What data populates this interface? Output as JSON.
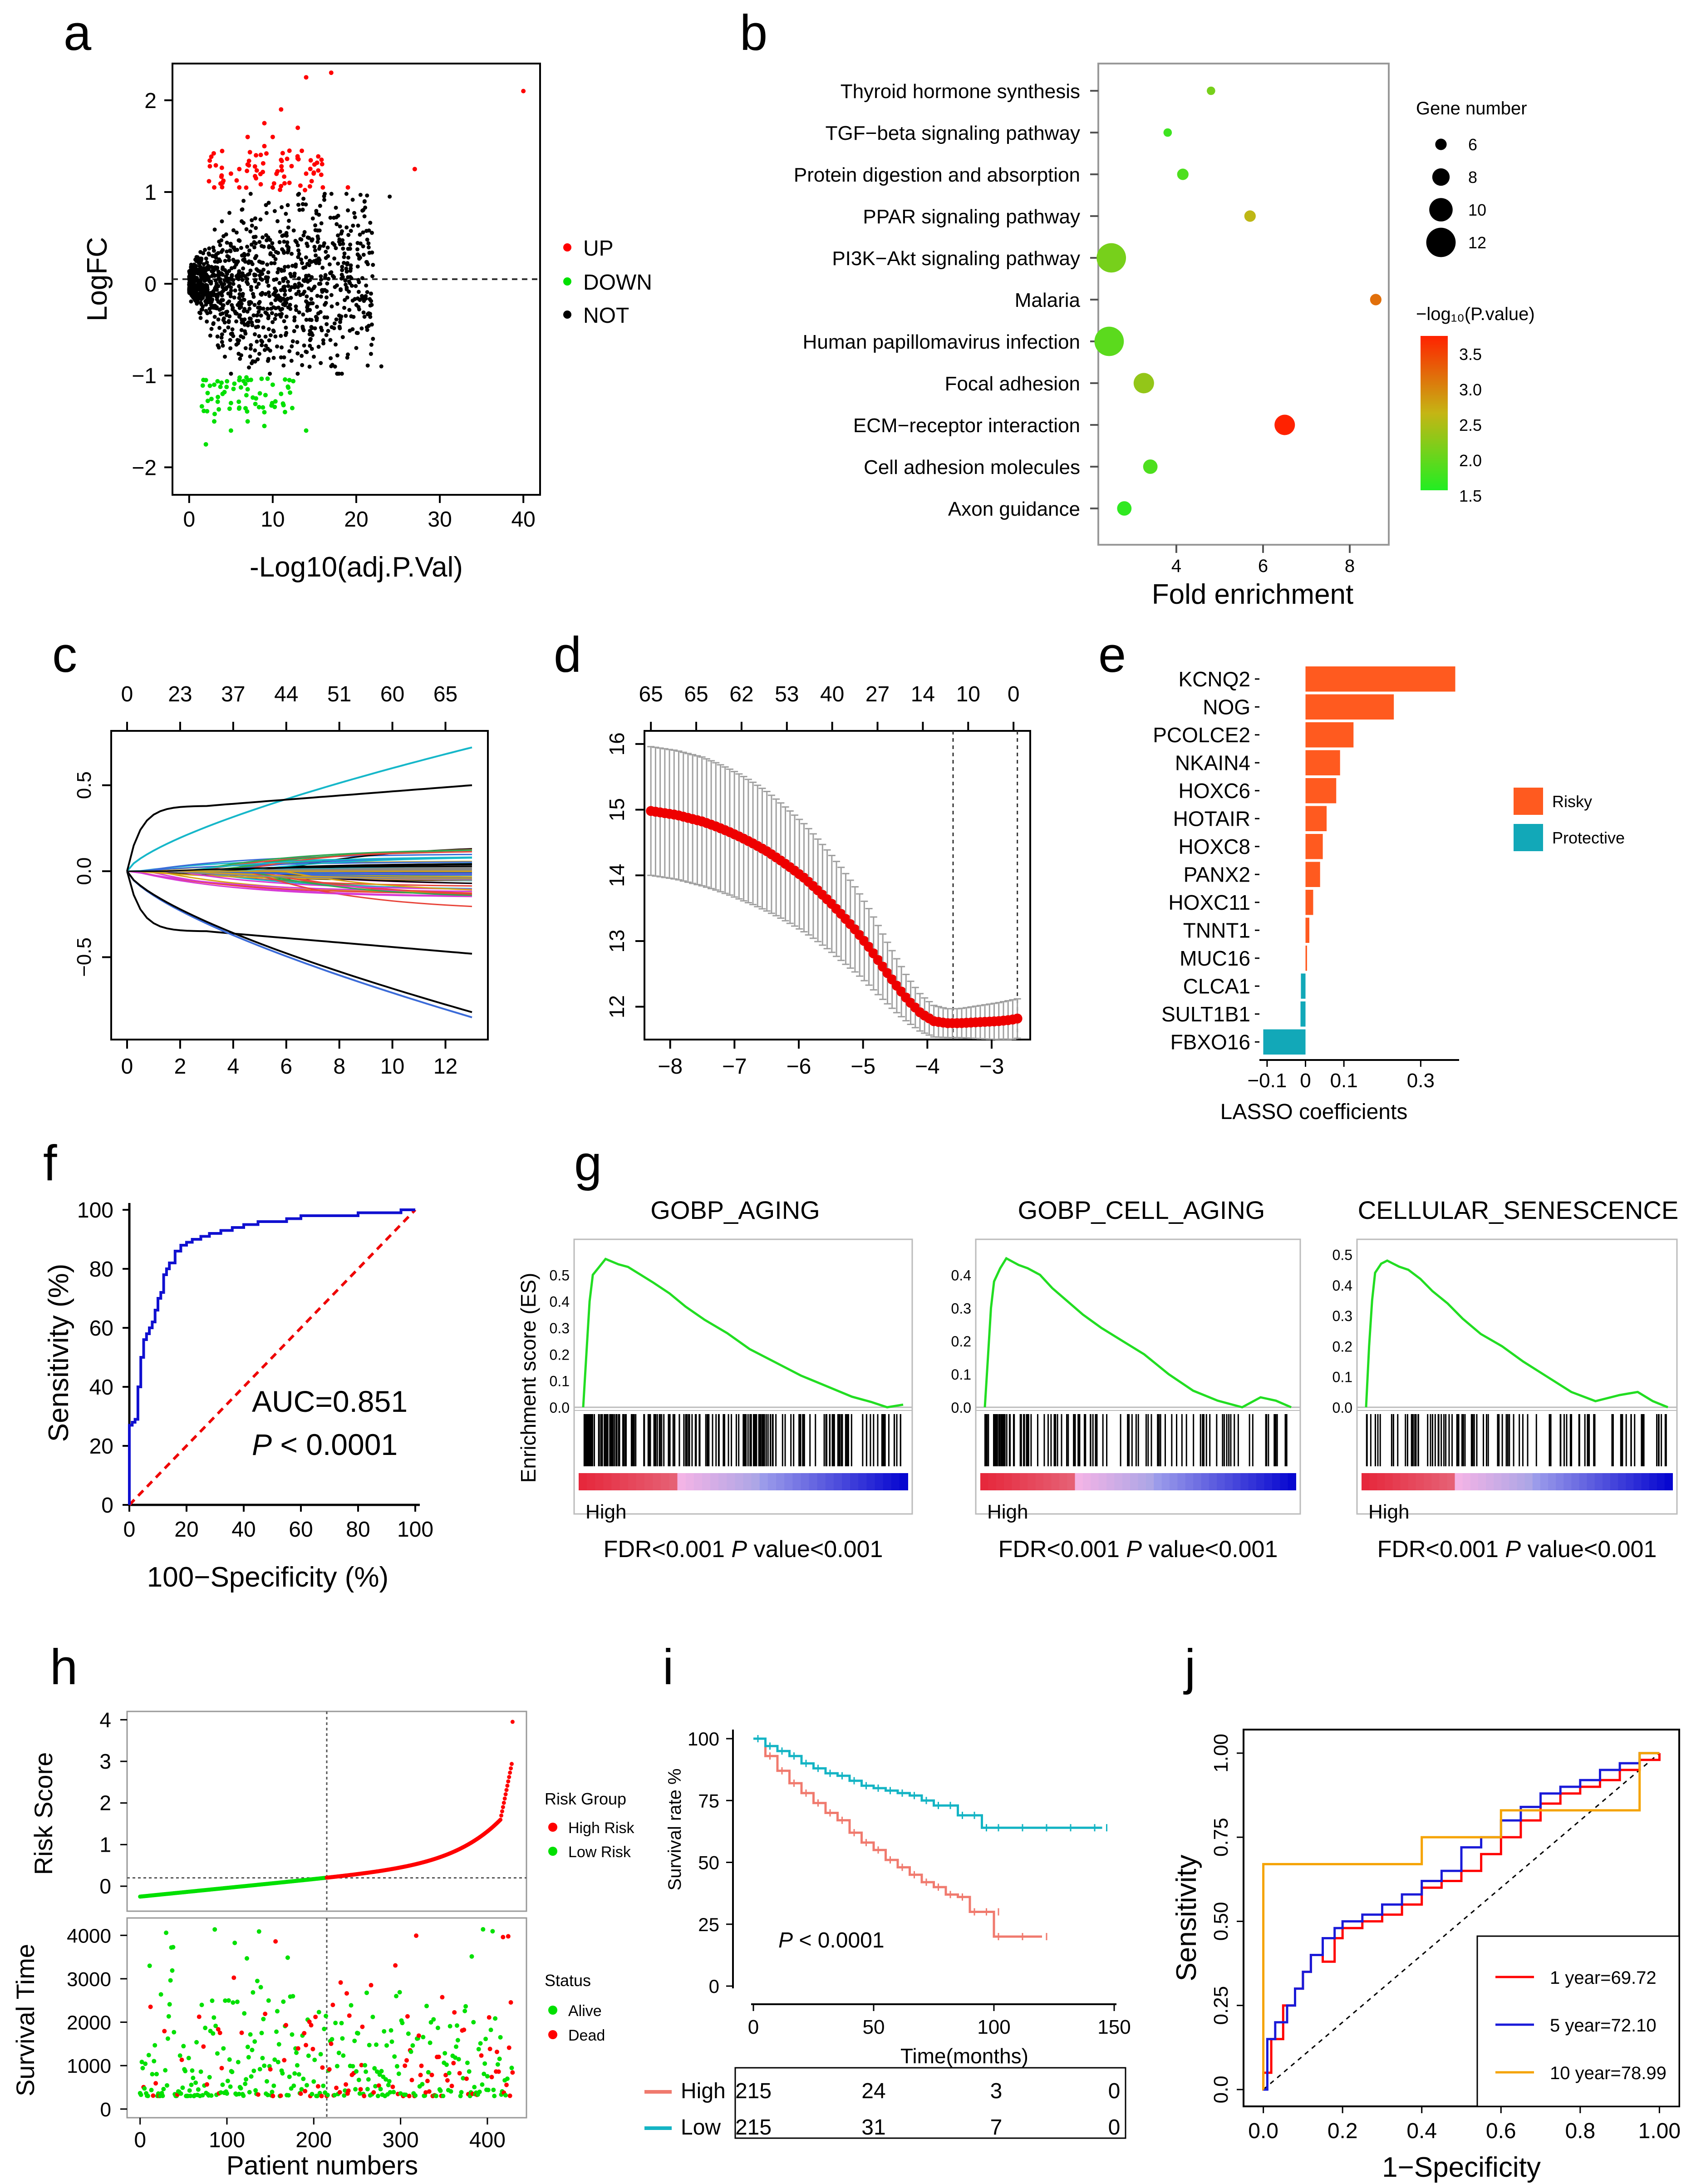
{
  "figure": {
    "panel_labels": [
      "a",
      "b",
      "c",
      "d",
      "e",
      "f",
      "g",
      "h",
      "i",
      "j"
    ]
  },
  "colors": {
    "red": "#ff0000",
    "green": "#00e000",
    "black": "#000000",
    "blue": "#1010d0",
    "orange": "#ff5a1f",
    "teal": "#12a8b8",
    "salmon": "#f07a6e",
    "cyan": "#14b4c4",
    "gold": "#f5a300",
    "grey": "#9a9a9a"
  },
  "chart_data": [
    {
      "id": "a",
      "type": "scatter",
      "title": "",
      "xlabel": "-Log10(adj.P.Val)",
      "ylabel": "LogFC",
      "xlim": [
        -2,
        42
      ],
      "ylim": [
        -2.3,
        2.4
      ],
      "xticks": [
        0,
        10,
        20,
        30,
        40
      ],
      "yticks": [
        -2,
        -1,
        0,
        1,
        2
      ],
      "hline": 0,
      "legend": {
        "position": "right",
        "entries": [
          "UP",
          "DOWN",
          "NOT"
        ]
      },
      "series": [
        {
          "name": "UP",
          "points": [
            [
              3,
              1.05
            ],
            [
              4,
              1.1
            ],
            [
              5,
              1.2
            ],
            [
              6,
              1.25
            ],
            [
              7,
              1.3
            ],
            [
              8,
              1.4
            ],
            [
              9,
              1.5
            ],
            [
              10,
              1.6
            ],
            [
              11,
              1.35
            ],
            [
              12,
              1.1
            ],
            [
              13,
              1.7
            ],
            [
              14,
              1.2
            ],
            [
              15,
              1.3
            ],
            [
              16,
              1.05
            ],
            [
              17,
              2.3
            ],
            [
              14,
              2.25
            ],
            [
              27,
              1.25
            ],
            [
              40,
              2.1
            ],
            [
              6,
              1.05
            ],
            [
              8,
              1.15
            ],
            [
              10,
              1.05
            ],
            [
              12,
              1.45
            ],
            [
              7,
              1.6
            ],
            [
              9,
              1.75
            ],
            [
              11,
              1.9
            ],
            [
              19,
              1.05
            ]
          ]
        },
        {
          "name": "DOWN",
          "points": [
            [
              2,
              -1.05
            ],
            [
              3,
              -1.1
            ],
            [
              4,
              -1.2
            ],
            [
              5,
              -1.3
            ],
            [
              6,
              -1.05
            ],
            [
              7,
              -1.15
            ],
            [
              8,
              -1.25
            ],
            [
              9,
              -1.4
            ],
            [
              10,
              -1.1
            ],
            [
              11,
              -1.2
            ],
            [
              3,
              -1.5
            ],
            [
              5,
              -1.6
            ],
            [
              7,
              -1.5
            ],
            [
              9,
              -1.55
            ],
            [
              14,
              -1.6
            ],
            [
              2,
              -1.75
            ],
            [
              12,
              -1.05
            ],
            [
              6,
              -1.35
            ]
          ]
        },
        {
          "name": "NOT",
          "cloud": "dense band between -1 and 1 spanning 0 to 25, with outliers"
        }
      ]
    },
    {
      "id": "b",
      "type": "scatter",
      "title": "",
      "xlabel": "Fold enrichment",
      "xlim": [
        2.2,
        8.9
      ],
      "xticks": [
        4,
        6,
        8
      ],
      "categories": [
        "Thyroid hormone synthesis",
        "TGF−beta signaling pathway",
        "Protein digestion and absorption",
        "PPAR signaling pathway",
        "PI3K−Akt signaling pathway",
        "Malaria",
        "Human papillomavirus infection",
        "Focal adhesion",
        "ECM−receptor interaction",
        "Cell adhesion molecules",
        "Axon guidance"
      ],
      "fold_enrichment": [
        4.8,
        3.8,
        4.15,
        5.7,
        2.5,
        8.6,
        2.45,
        3.25,
        6.5,
        3.4,
        2.8
      ],
      "gene_number": [
        5,
        5,
        6,
        6,
        12,
        6,
        12,
        9,
        9,
        7,
        7
      ],
      "neg_log10_p": [
        2.0,
        1.6,
        1.7,
        2.5,
        2.0,
        3.1,
        1.8,
        2.2,
        3.7,
        1.7,
        1.5
      ],
      "size_legend": {
        "title": "Gene number",
        "values": [
          "6",
          "8",
          "10",
          "12"
        ]
      },
      "color_legend": {
        "title": "−log₁₀(P.value)",
        "ticks": [
          "3.5",
          "3.0",
          "2.5",
          "2.0",
          "1.5"
        ]
      }
    },
    {
      "id": "c",
      "type": "line",
      "title": "",
      "xlim": [
        0,
        13
      ],
      "ylim": [
        -0.9,
        0.75
      ],
      "xticks": [
        0,
        2,
        4,
        6,
        8,
        10,
        12
      ],
      "yticks": [
        "0.5",
        "0.0",
        "−0.5"
      ],
      "top_axis": [
        "0",
        "23",
        "37",
        "44",
        "51",
        "60",
        "65"
      ],
      "series_count": 65
    },
    {
      "id": "d",
      "type": "line",
      "title": "",
      "xlim": [
        -8.4,
        -2.4
      ],
      "ylim": [
        11.5,
        16.2
      ],
      "xticks": [
        -8,
        -7,
        -6,
        -5,
        -4,
        -3
      ],
      "yticks": [
        12,
        13,
        14,
        15,
        16
      ],
      "top_axis": [
        "65",
        "65",
        "62",
        "53",
        "40",
        "27",
        "14",
        "10",
        "0"
      ],
      "vlines": [
        -3.6,
        -2.6
      ],
      "x": [
        -8.3,
        -8.1,
        -7.9,
        -7.7,
        -7.5,
        -7.3,
        -7.1,
        -6.9,
        -6.7,
        -6.5,
        -6.3,
        -6.1,
        -5.9,
        -5.7,
        -5.5,
        -5.3,
        -5.1,
        -4.9,
        -4.7,
        -4.5,
        -4.3,
        -4.1,
        -3.9,
        -3.7,
        -3.5,
        -3.3,
        -3.1,
        -2.9,
        -2.7,
        -2.6
      ],
      "y": [
        14.98,
        14.95,
        14.92,
        14.87,
        14.82,
        14.75,
        14.67,
        14.58,
        14.48,
        14.37,
        14.24,
        14.1,
        13.95,
        13.77,
        13.58,
        13.37,
        13.15,
        12.9,
        12.62,
        12.35,
        12.1,
        11.9,
        11.78,
        11.75,
        11.75,
        11.76,
        11.77,
        11.78,
        11.8,
        11.82
      ],
      "err": [
        0.98,
        0.98,
        0.98,
        0.98,
        0.98,
        0.97,
        0.96,
        0.95,
        0.93,
        0.91,
        0.88,
        0.85,
        0.82,
        0.78,
        0.74,
        0.7,
        0.64,
        0.58,
        0.5,
        0.42,
        0.34,
        0.28,
        0.24,
        0.22,
        0.22,
        0.24,
        0.26,
        0.28,
        0.3,
        0.3
      ]
    },
    {
      "id": "e",
      "type": "bar",
      "title": "",
      "xlabel": "LASSO coefficients",
      "xlim": [
        -0.12,
        0.4
      ],
      "xticks": [
        "−0.1",
        "0",
        "0.1",
        "0.3"
      ],
      "xtick_values": [
        -0.1,
        0,
        0.1,
        0.3
      ],
      "categories": [
        "KCNQ2",
        "NOG",
        "PCOLCE2",
        "NKAIN4",
        "HOXC6",
        "HOTAIR",
        "HOXC8",
        "PANX2",
        "HOXC11",
        "TNNT1",
        "MUC16",
        "CLCA1",
        "SULT1B1",
        "FBXO16"
      ],
      "values": [
        0.39,
        0.23,
        0.125,
        0.09,
        0.08,
        0.055,
        0.045,
        0.038,
        0.02,
        0.01,
        0.004,
        -0.012,
        -0.013,
        -0.11
      ],
      "legend": [
        "Risky",
        "Protective"
      ]
    },
    {
      "id": "f",
      "type": "line",
      "title": "",
      "xlabel": "100−Specificity  (%)",
      "ylabel": "Sensitivity (%)",
      "xlim": [
        0,
        100
      ],
      "ylim": [
        0,
        100
      ],
      "xticks": [
        0,
        20,
        40,
        60,
        80,
        100
      ],
      "yticks": [
        0,
        20,
        40,
        60,
        80,
        100
      ],
      "x": [
        0,
        0,
        1,
        2,
        3,
        3,
        4,
        5,
        6,
        7,
        8,
        9,
        10,
        11,
        12,
        13,
        14,
        16,
        18,
        20,
        22,
        25,
        28,
        32,
        36,
        40,
        45,
        50,
        55,
        60,
        70,
        80,
        90,
        95,
        100
      ],
      "y": [
        0,
        27,
        28,
        29,
        30,
        40,
        50,
        56,
        58,
        60,
        62,
        66,
        70,
        72,
        78,
        80,
        82,
        86,
        88,
        89,
        90,
        91,
        92,
        93,
        94,
        95,
        96,
        96,
        97,
        98,
        98,
        99,
        99,
        100,
        100
      ],
      "auc_label": "AUC=0.851",
      "p_label": "P < 0.0001"
    },
    {
      "id": "g",
      "type": "line",
      "titles": [
        "GOBP_AGING",
        "GOBP_CELL_AGING",
        "CELLULAR_SENESCENCE"
      ],
      "ylabel": "Enrichment score (ES)",
      "xlabel_left": "High",
      "footers": [
        [
          "FDR<0.001",
          "P",
          " value<0.001"
        ],
        [
          "FDR<0.001",
          "P",
          " value<0.001"
        ],
        [
          "FDR<0.001",
          "P",
          " value<0.001"
        ]
      ],
      "yticks": [
        [
          "0.5",
          "0.4",
          "0.3",
          "0.2",
          "0.1",
          "0.0"
        ],
        [
          "0.4",
          "0.3",
          "0.2",
          "0.1",
          "0.0"
        ],
        [
          "0.5",
          "0.4",
          "0.3",
          "0.2",
          "0.1",
          "0.0"
        ]
      ],
      "x": [
        0,
        1,
        2,
        3,
        5,
        7,
        9,
        11,
        14,
        18,
        22,
        27,
        32,
        38,
        45,
        52,
        60,
        68,
        76,
        84,
        90,
        95,
        100
      ],
      "es": [
        [
          0,
          0.2,
          0.4,
          0.5,
          0.53,
          0.56,
          0.55,
          0.54,
          0.53,
          0.5,
          0.47,
          0.43,
          0.38,
          0.33,
          0.28,
          0.22,
          0.17,
          0.12,
          0.08,
          0.04,
          0.02,
          0.0,
          0.01
        ],
        [
          0,
          0.15,
          0.3,
          0.38,
          0.42,
          0.45,
          0.44,
          0.43,
          0.42,
          0.4,
          0.36,
          0.32,
          0.28,
          0.24,
          0.2,
          0.16,
          0.1,
          0.05,
          0.02,
          0.0,
          0.03,
          0.02,
          0.0
        ],
        [
          0,
          0.2,
          0.35,
          0.44,
          0.47,
          0.48,
          0.47,
          0.46,
          0.45,
          0.42,
          0.38,
          0.34,
          0.29,
          0.24,
          0.2,
          0.15,
          0.1,
          0.05,
          0.02,
          0.04,
          0.05,
          0.02,
          0.0
        ]
      ]
    },
    {
      "id": "h",
      "type": "scatter",
      "top": {
        "ylabel": "Risk Score",
        "yticks": [
          0,
          1,
          2,
          3,
          4
        ],
        "ylim": [
          -0.6,
          4.2
        ],
        "legend_title": "Risk Group",
        "legend": [
          "High Risk",
          "Low Risk"
        ]
      },
      "bottom": {
        "ylabel": "Survival Time",
        "yticks": [
          0,
          1000,
          2000,
          3000,
          4000
        ],
        "ylim": [
          -200,
          4400
        ],
        "legend_title": "Status",
        "legend": [
          "Alive",
          "Dead"
        ]
      },
      "xlabel": "Patient numbers",
      "xticks": [
        0,
        100,
        200,
        300,
        400
      ],
      "xlim": [
        -15,
        445
      ],
      "n_patients": 430,
      "cutoff_index": 215,
      "cutoff_score": 0.2
    },
    {
      "id": "i",
      "type": "line",
      "ylabel": "Survival rate %",
      "xlabel": "Time(months)",
      "xticks": [
        0,
        50,
        100,
        150
      ],
      "yticks": [
        0,
        25,
        50,
        75,
        100
      ],
      "xlim": [
        -5,
        155
      ],
      "ylim": [
        -5,
        105
      ],
      "p_label": "P < 0.0001",
      "series": [
        {
          "name": "High",
          "x": [
            0,
            5,
            10,
            15,
            20,
            25,
            30,
            35,
            40,
            45,
            50,
            55,
            60,
            65,
            70,
            75,
            80,
            85,
            90,
            95,
            100,
            100,
            110,
            120
          ],
          "y": [
            100,
            93,
            87,
            82,
            78,
            74,
            70,
            67,
            62,
            58,
            55,
            51,
            48,
            45,
            42,
            40,
            37,
            36,
            30,
            30,
            30,
            20,
            20,
            20
          ]
        },
        {
          "name": "Low",
          "x": [
            0,
            5,
            10,
            15,
            20,
            25,
            30,
            35,
            40,
            45,
            50,
            55,
            60,
            65,
            70,
            75,
            80,
            85,
            90,
            95,
            100,
            110,
            120,
            130,
            140,
            145
          ],
          "y": [
            100,
            97,
            95,
            93,
            90,
            88,
            86,
            85,
            83,
            81,
            80,
            79,
            78,
            77,
            75,
            73,
            73,
            69,
            69,
            64,
            64,
            64,
            64,
            64,
            64,
            64
          ]
        }
      ],
      "risk_table": {
        "rows": [
          "High",
          "Low"
        ],
        "values": [
          [
            "215",
            "24",
            "3",
            "0"
          ],
          [
            "215",
            "31",
            "7",
            "0"
          ]
        ]
      }
    },
    {
      "id": "j",
      "type": "line",
      "xlabel": "1−Specificity",
      "ylabel": "Sensitivity",
      "xticks": [
        "0.0",
        "0.2",
        "0.4",
        "0.6",
        "0.8",
        "1.00"
      ],
      "yticks": [
        "0.0",
        "0.25",
        "0.50",
        "0.75",
        "1.00"
      ],
      "xlim": [
        -0.05,
        1.05
      ],
      "ylim": [
        -0.05,
        1.07
      ],
      "series": [
        {
          "name": "1 year=69.72",
          "x": [
            0,
            0,
            0.02,
            0.05,
            0.05,
            0.08,
            0.1,
            0.12,
            0.15,
            0.18,
            0.2,
            0.25,
            0.3,
            0.35,
            0.4,
            0.45,
            0.5,
            0.55,
            0.6,
            0.65,
            0.7,
            0.75,
            0.8,
            0.85,
            0.9,
            0.95,
            1.0
          ],
          "y": [
            0,
            0.05,
            0.15,
            0.2,
            0.25,
            0.3,
            0.35,
            0.4,
            0.38,
            0.45,
            0.48,
            0.5,
            0.52,
            0.55,
            0.6,
            0.62,
            0.65,
            0.7,
            0.75,
            0.8,
            0.85,
            0.88,
            0.9,
            0.92,
            0.95,
            0.98,
            1.0
          ]
        },
        {
          "name": "5 year=72.10",
          "x": [
            0,
            0.01,
            0.03,
            0.06,
            0.08,
            0.1,
            0.12,
            0.15,
            0.18,
            0.2,
            0.25,
            0.3,
            0.35,
            0.4,
            0.45,
            0.5,
            0.55,
            0.6,
            0.65,
            0.7,
            0.75,
            0.8,
            0.85,
            0.9,
            0.95,
            1.0
          ],
          "y": [
            0,
            0.15,
            0.2,
            0.25,
            0.3,
            0.35,
            0.4,
            0.45,
            0.48,
            0.5,
            0.52,
            0.55,
            0.58,
            0.62,
            0.65,
            0.72,
            0.75,
            0.8,
            0.84,
            0.88,
            0.9,
            0.92,
            0.95,
            0.97,
            1.0,
            1.0
          ]
        },
        {
          "name": "10 year=78.99",
          "x": [
            0,
            0,
            0.4,
            0.4,
            0.6,
            0.6,
            0.95,
            0.95,
            1.0
          ],
          "y": [
            0,
            0.67,
            0.67,
            0.75,
            0.75,
            0.83,
            0.83,
            1.0,
            1.0
          ]
        }
      ]
    }
  ]
}
